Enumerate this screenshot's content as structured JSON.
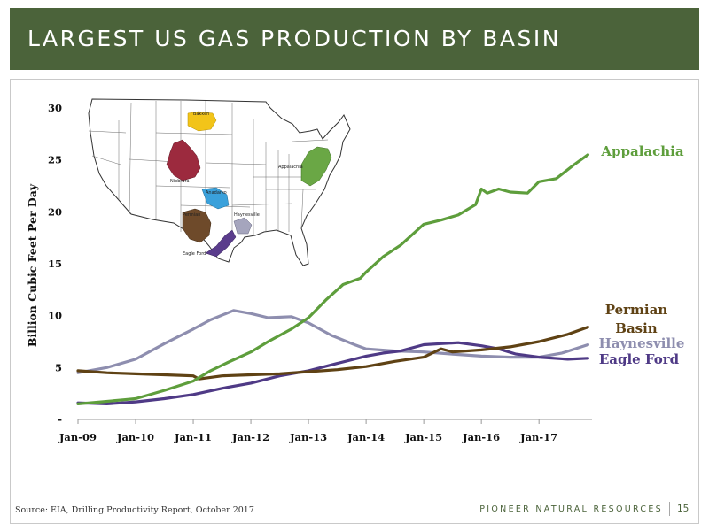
{
  "slide": {
    "title": "LARGEST US GAS PRODUCTION BY BASIN",
    "source": "Source: EIA, Drilling Productivity Report, October 2017",
    "brand": "PIONEER NATURAL RESOURCES",
    "page_number": "15"
  },
  "colors": {
    "title_bar": "#4b633a",
    "Appalachia": "#5e9e3c",
    "Permian": "#5f4214",
    "Haynesville": "#8e8eaf",
    "Eagle Ford": "#4f3a86",
    "map_bakken": "#f2c419",
    "map_niobrara": "#9c2a3e",
    "map_anadarko": "#3aa1db",
    "map_permian": "#6e4a2a",
    "map_haynesville": "#a5a5bd",
    "map_eagleford": "#5a3c8c",
    "map_appalachia": "#6aa745"
  },
  "map": {
    "labels": {
      "bakken": "Bakken",
      "niobrara": "Niobrara",
      "anadarko": "Anadarko",
      "permian": "Permian",
      "haynesville": "Haynesville",
      "eagleford": "Eagle Ford",
      "appalachia": "Appalachia"
    }
  },
  "chart_data": {
    "type": "line",
    "title": "",
    "ylabel": "Billion Cubic Feet Per Day",
    "xlabel": "",
    "xlim": [
      2009.0,
      2017.92
    ],
    "ylim": [
      0,
      30
    ],
    "yticks": [
      {
        "value": 0,
        "label": "-"
      },
      {
        "value": 5,
        "label": "5"
      },
      {
        "value": 10,
        "label": "10"
      },
      {
        "value": 15,
        "label": "15"
      },
      {
        "value": 20,
        "label": "20"
      },
      {
        "value": 25,
        "label": "25"
      },
      {
        "value": 30,
        "label": "30"
      }
    ],
    "xticks": [
      {
        "value": 2009,
        "label": "Jan-09"
      },
      {
        "value": 2010,
        "label": "Jan-10"
      },
      {
        "value": 2011,
        "label": "Jan-11"
      },
      {
        "value": 2012,
        "label": "Jan-12"
      },
      {
        "value": 2013,
        "label": "Jan-13"
      },
      {
        "value": 2014,
        "label": "Jan-14"
      },
      {
        "value": 2015,
        "label": "Jan-15"
      },
      {
        "value": 2016,
        "label": "Jan-16"
      },
      {
        "value": 2017,
        "label": "Jan-17"
      }
    ],
    "grid": false,
    "legend": "direct labels at line ends",
    "series": [
      {
        "name": "Appalachia",
        "label_lines": [
          "Appalachia"
        ],
        "x": [
          2009.0,
          2009.4,
          2009.8,
          2010.0,
          2010.5,
          2011.0,
          2011.3,
          2011.6,
          2012.0,
          2012.3,
          2012.7,
          2013.0,
          2013.3,
          2013.6,
          2013.9,
          2014.0,
          2014.3,
          2014.6,
          2014.9,
          2015.0,
          2015.3,
          2015.6,
          2015.9,
          2016.0,
          2016.1,
          2016.3,
          2016.5,
          2016.8,
          2017.0,
          2017.3,
          2017.6,
          2017.85
        ],
        "y": [
          1.5,
          1.7,
          1.9,
          2.0,
          2.8,
          3.7,
          4.7,
          5.5,
          6.5,
          7.5,
          8.7,
          9.8,
          11.5,
          13.0,
          13.6,
          14.2,
          15.7,
          16.8,
          18.3,
          18.8,
          19.2,
          19.7,
          20.7,
          22.2,
          21.8,
          22.2,
          21.9,
          21.8,
          22.9,
          23.2,
          24.5,
          25.5
        ]
      },
      {
        "name": "Permian",
        "label_lines": [
          "Permian",
          "Basin"
        ],
        "x": [
          2009.0,
          2009.5,
          2010.0,
          2010.5,
          2011.0,
          2011.1,
          2011.5,
          2012.0,
          2012.5,
          2013.0,
          2013.5,
          2014.0,
          2014.5,
          2015.0,
          2015.3,
          2015.5,
          2016.0,
          2016.5,
          2017.0,
          2017.5,
          2017.85
        ],
        "y": [
          4.7,
          4.5,
          4.4,
          4.3,
          4.2,
          3.9,
          4.2,
          4.3,
          4.4,
          4.6,
          4.8,
          5.1,
          5.6,
          6.0,
          6.8,
          6.5,
          6.7,
          7.0,
          7.5,
          8.2,
          8.9
        ]
      },
      {
        "name": "Haynesville",
        "label_lines": [
          "Haynesville"
        ],
        "x": [
          2009.0,
          2009.5,
          2010.0,
          2010.5,
          2011.0,
          2011.3,
          2011.7,
          2012.0,
          2012.3,
          2012.7,
          2013.0,
          2013.4,
          2013.8,
          2014.0,
          2014.5,
          2015.0,
          2015.5,
          2016.0,
          2016.5,
          2017.0,
          2017.4,
          2017.85
        ],
        "y": [
          4.5,
          5.0,
          5.8,
          7.3,
          8.7,
          9.6,
          10.5,
          10.2,
          9.8,
          9.9,
          9.3,
          8.1,
          7.2,
          6.8,
          6.6,
          6.5,
          6.3,
          6.1,
          6.0,
          6.0,
          6.4,
          7.2
        ]
      },
      {
        "name": "Eagle Ford",
        "label_lines": [
          "Eagle Ford"
        ],
        "x": [
          2009.0,
          2009.5,
          2010.0,
          2010.5,
          2011.0,
          2011.5,
          2012.0,
          2012.5,
          2013.0,
          2013.5,
          2014.0,
          2014.3,
          2014.6,
          2015.0,
          2015.3,
          2015.6,
          2016.0,
          2016.3,
          2016.6,
          2017.0,
          2017.5,
          2017.85
        ],
        "y": [
          1.6,
          1.5,
          1.7,
          2.0,
          2.4,
          3.0,
          3.5,
          4.2,
          4.7,
          5.4,
          6.1,
          6.4,
          6.6,
          7.2,
          7.3,
          7.4,
          7.1,
          6.8,
          6.3,
          6.0,
          5.8,
          5.9
        ]
      }
    ]
  }
}
